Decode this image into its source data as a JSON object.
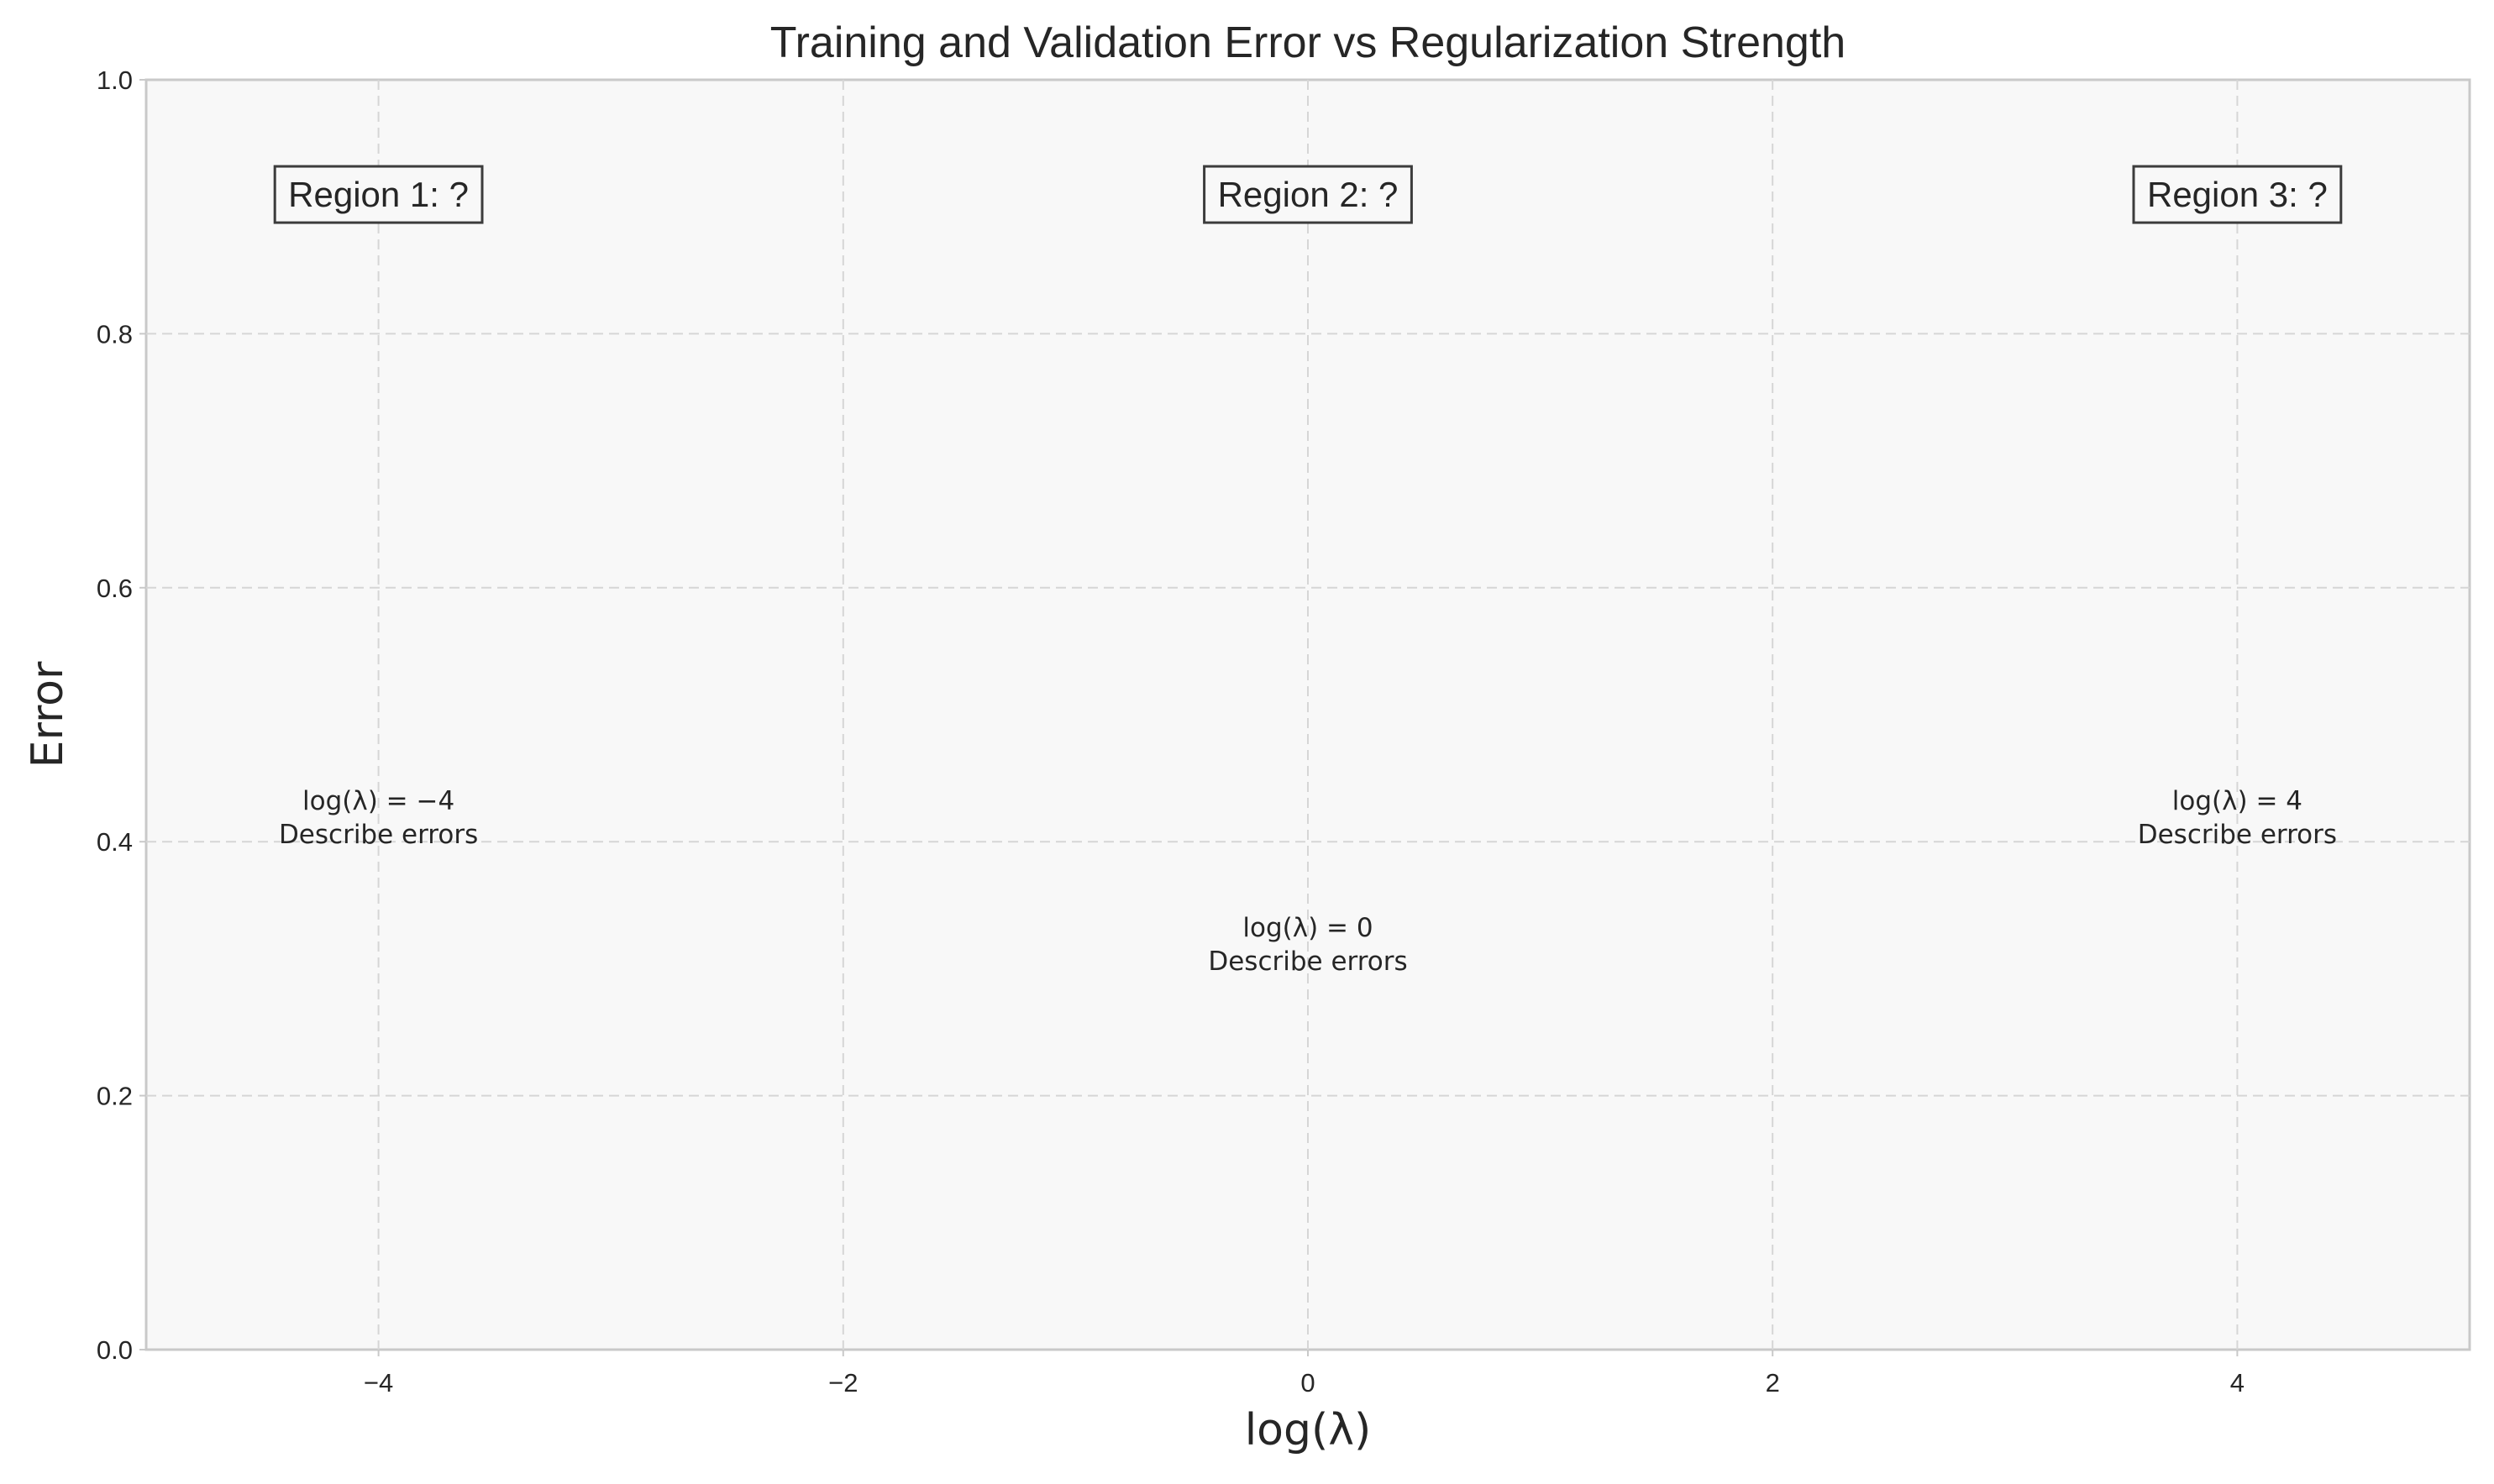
{
  "chart_data": {
    "type": "line",
    "title": "Training and Validation Error vs Regularization Strength",
    "xlabel": "log(λ)",
    "ylabel": "Error",
    "xlim": [
      -5,
      5
    ],
    "ylim": [
      0,
      1
    ],
    "x_ticks": [
      -4,
      -2,
      0,
      2,
      4
    ],
    "x_tick_labels": [
      "−4",
      "−2",
      "0",
      "2",
      "4"
    ],
    "y_ticks": [
      0.0,
      0.2,
      0.4,
      0.6,
      0.8,
      1.0
    ],
    "y_tick_labels": [
      "0.0",
      "0.2",
      "0.4",
      "0.6",
      "0.8",
      "1.0"
    ],
    "grid": true,
    "series": [],
    "region_labels": [
      {
        "text": "Region 1: ?",
        "x": -4,
        "y": 0.91
      },
      {
        "text": "Region 2: ?",
        "x": 0,
        "y": 0.91
      },
      {
        "text": "Region 3: ?",
        "x": 4,
        "y": 0.91
      }
    ],
    "annotations": [
      {
        "line1": "log(λ) = −4",
        "line2": "Describe errors",
        "x": -4,
        "y": 0.42
      },
      {
        "line1": "log(λ) = 0",
        "line2": "Describe errors",
        "x": 0,
        "y": 0.32
      },
      {
        "line1": "log(λ) = 4",
        "line2": "Describe errors",
        "x": 4,
        "y": 0.42
      }
    ]
  }
}
